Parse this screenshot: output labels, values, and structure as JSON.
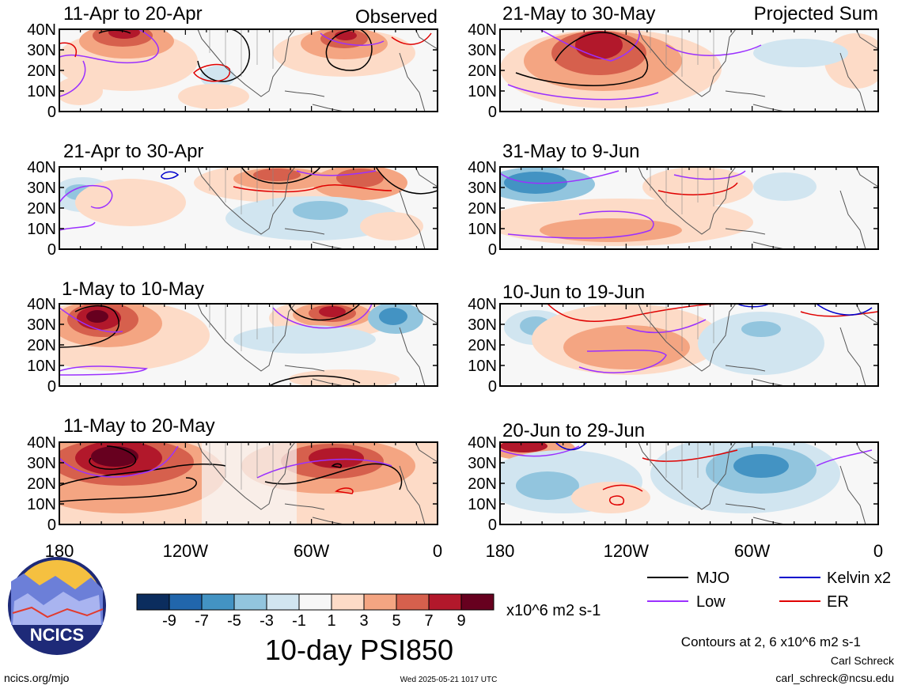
{
  "figure": {
    "title": "10-day PSI850",
    "units_label": "x10^6 m2 s-1",
    "contour_note": "Contours at 2, 6 x10^6 m2 s-1",
    "author": "Carl Schreck",
    "email": "carl_schreck@ncsu.edu",
    "site": "ncics.org/mjo",
    "timestamp": "Wed 2025-05-21 1017 UTC",
    "logo_text": "NCICS"
  },
  "columns": {
    "left_header": "Observed",
    "right_header": "Projected Sum"
  },
  "axes": {
    "lat_labels": [
      "40N",
      "30N",
      "20N",
      "10N",
      "0"
    ],
    "lon_labels": [
      "180",
      "120W",
      "60W",
      "0"
    ]
  },
  "panels": [
    {
      "period": "11-Apr to 20-Apr",
      "column": "Observed"
    },
    {
      "period": "21-Apr to 30-Apr",
      "column": "Observed"
    },
    {
      "period": "1-May to 10-May",
      "column": "Observed"
    },
    {
      "period": "11-May to 20-May",
      "column": "Observed"
    },
    {
      "period": "21-May to 30-May",
      "column": "Projected Sum"
    },
    {
      "period": "31-May to 9-Jun",
      "column": "Projected Sum"
    },
    {
      "period": "10-Jun to 19-Jun",
      "column": "Projected Sum"
    },
    {
      "period": "20-Jun to 29-Jun",
      "column": "Projected Sum"
    }
  ],
  "colorbar": {
    "tick_labels": [
      "-9",
      "-7",
      "-5",
      "-3",
      "-1",
      "1",
      "3",
      "5",
      "7",
      "9"
    ],
    "colors": [
      "#0b2d5e",
      "#2166ac",
      "#4393c3",
      "#92c5de",
      "#d1e5f0",
      "#f7f7f7",
      "#fddbc7",
      "#f4a582",
      "#d6604d",
      "#b2182b",
      "#67001f"
    ]
  },
  "legend": [
    {
      "label": "MJO",
      "color": "#000000"
    },
    {
      "label": "Kelvin x2",
      "color": "#0000cc"
    },
    {
      "label": "Low",
      "color": "#9b30ff"
    },
    {
      "label": "ER",
      "color": "#e00000"
    }
  ]
}
